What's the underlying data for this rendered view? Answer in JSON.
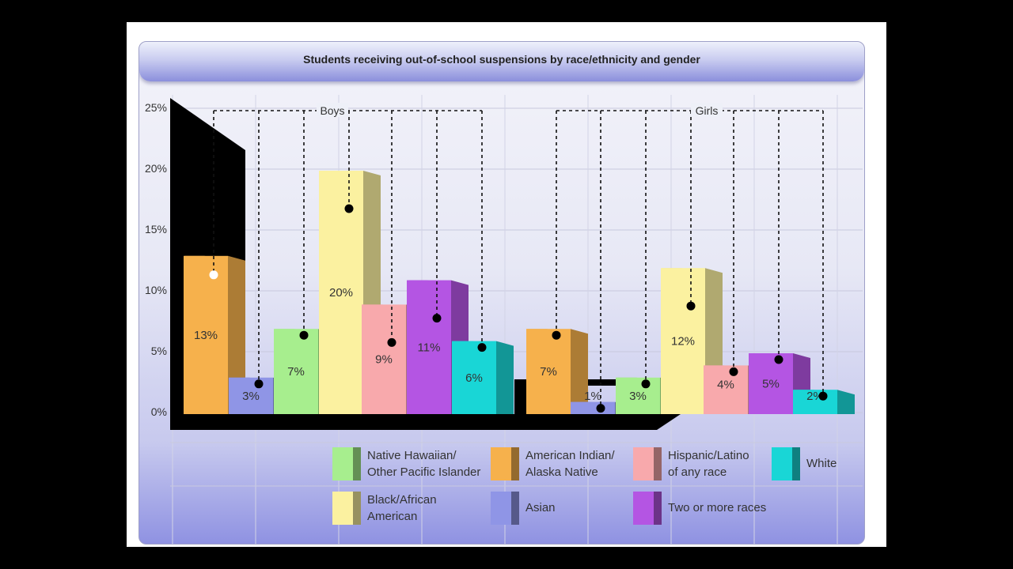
{
  "chart_data": {
    "type": "bar",
    "title": "Students receiving out-of-school suspensions by race/ethnicity and gender",
    "ylim": [
      0,
      25
    ],
    "yticks": [
      "0%",
      "5%",
      "10%",
      "15%",
      "20%",
      "25%"
    ],
    "grid": true,
    "legend_position": "bottom",
    "groups": [
      {
        "name": "Boys",
        "bars": [
          {
            "category": "American Indian/ Alaska Native",
            "value": 13,
            "label": "13%"
          },
          {
            "category": "Asian",
            "value": 3,
            "label": "3%"
          },
          {
            "category": "Native Hawaiian/ Other Pacific Islander",
            "value": 7,
            "label": "7%"
          },
          {
            "category": "Black/African American",
            "value": 20,
            "label": "20%"
          },
          {
            "category": "Hispanic/Latino of any race",
            "value": 9,
            "label": "9%"
          },
          {
            "category": "Two or more races",
            "value": 11,
            "label": "11%"
          },
          {
            "category": "White",
            "value": 6,
            "label": "6%"
          }
        ]
      },
      {
        "name": "Girls",
        "bars": [
          {
            "category": "American Indian/ Alaska Native",
            "value": 7,
            "label": "7%"
          },
          {
            "category": "Asian",
            "value": 1,
            "label": "1%"
          },
          {
            "category": "Native Hawaiian/ Other Pacific Islander",
            "value": 3,
            "label": "3%"
          },
          {
            "category": "Black/African American",
            "value": 12,
            "label": "12%"
          },
          {
            "category": "Hispanic/Latino of any race",
            "value": 4,
            "label": "4%"
          },
          {
            "category": "Two or more races",
            "value": 5,
            "label": "5%"
          },
          {
            "category": "White",
            "value": 2,
            "label": "2%"
          }
        ]
      }
    ],
    "legend": [
      {
        "label_lines": [
          "Native Hawaiian/",
          "Other Pacific Islander"
        ],
        "color": "#a7ee8e"
      },
      {
        "label_lines": [
          "American Indian/",
          "Alaska Native"
        ],
        "color": "#f6b14c"
      },
      {
        "label_lines": [
          "Hispanic/Latino",
          "of any race"
        ],
        "color": "#f8a9ac"
      },
      {
        "label_lines": [
          "White"
        ],
        "color": "#19d6d6"
      },
      {
        "label_lines": [
          "Black/African",
          "American"
        ],
        "color": "#fbf1a0"
      },
      {
        "label_lines": [
          "Asian"
        ],
        "color": "#8f95e6"
      },
      {
        "label_lines": [
          "Two or more races"
        ],
        "color": "#b455e3"
      }
    ],
    "colors": {
      "American Indian/ Alaska Native": "#f6b14c",
      "Asian": "#8f95e6",
      "Native Hawaiian/ Other Pacific Islander": "#a7ee8e",
      "Black/African American": "#fbf1a0",
      "Hispanic/Latino of any race": "#f8a9ac",
      "Two or more races": "#b455e3",
      "White": "#19d6d6"
    }
  }
}
